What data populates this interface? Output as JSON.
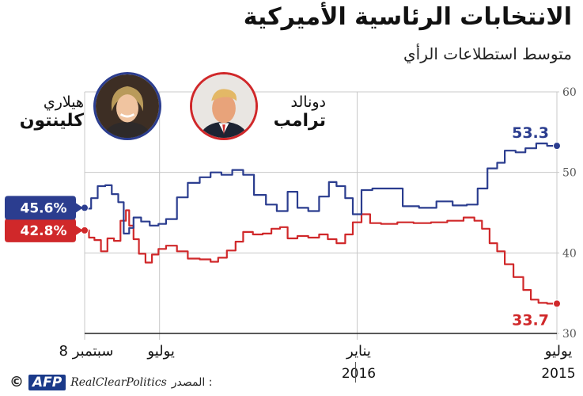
{
  "header": {
    "title": "الانتخابات الرئاسية الأميركية",
    "subtitle": "متوسط استطلاعات الرأي"
  },
  "candidates": {
    "trump": {
      "first": "دونالد",
      "last": "ترامب",
      "color": "#d0282a"
    },
    "clinton": {
      "first": "هيلاري",
      "last": "كلينتون",
      "color": "#2b3d8f"
    }
  },
  "footer": {
    "copyright": "©",
    "agency": "AFP",
    "source_name": "RealClearPolitics",
    "source_label": ": المصدر"
  },
  "chart_data": {
    "type": "line",
    "y_axis_side": "right",
    "ylim": [
      30,
      60
    ],
    "yticks": [
      30,
      40,
      50,
      60
    ],
    "x_direction": "right-to-left",
    "x_range": [
      "2015-07-01",
      "2016-09-08"
    ],
    "x_ticks": [
      {
        "date": "2015-07-01",
        "month": "يوليو",
        "year": "2015"
      },
      {
        "date": "2016-01-01",
        "month": "يناير",
        "year": "2016"
      },
      {
        "date": "2016-07-01",
        "month": "يوليو",
        "year": ""
      },
      {
        "date": "2016-09-08",
        "month": "8 سبتمبر",
        "year": ""
      }
    ],
    "grid": true,
    "series": [
      {
        "name": "ترامب",
        "color": "#d0282a",
        "start_label": "33.7",
        "end_label": "42.8%",
        "points": [
          [
            "2015-07-01",
            33.7
          ],
          [
            "2015-07-10",
            33.8
          ],
          [
            "2015-07-18",
            34.2
          ],
          [
            "2015-07-25",
            35.4
          ],
          [
            "2015-08-01",
            37.0
          ],
          [
            "2015-08-10",
            38.6
          ],
          [
            "2015-08-18",
            40.2
          ],
          [
            "2015-08-25",
            41.2
          ],
          [
            "2015-09-01",
            43.0
          ],
          [
            "2015-09-08",
            44.0
          ],
          [
            "2015-09-15",
            44.4
          ],
          [
            "2015-09-25",
            44.0
          ],
          [
            "2015-10-10",
            43.8
          ],
          [
            "2015-10-25",
            43.7
          ],
          [
            "2015-11-10",
            43.8
          ],
          [
            "2015-11-25",
            43.6
          ],
          [
            "2015-12-10",
            43.7
          ],
          [
            "2015-12-20",
            44.8
          ],
          [
            "2015-12-28",
            43.8
          ],
          [
            "2016-01-05",
            42.3
          ],
          [
            "2016-01-12",
            41.2
          ],
          [
            "2016-01-20",
            41.7
          ],
          [
            "2016-01-28",
            42.3
          ],
          [
            "2016-02-05",
            41.9
          ],
          [
            "2016-02-15",
            42.1
          ],
          [
            "2016-02-25",
            41.8
          ],
          [
            "2016-03-05",
            43.2
          ],
          [
            "2016-03-12",
            43.0
          ],
          [
            "2016-03-20",
            42.4
          ],
          [
            "2016-03-28",
            42.3
          ],
          [
            "2016-04-06",
            42.6
          ],
          [
            "2016-04-15",
            41.4
          ],
          [
            "2016-04-22",
            40.3
          ],
          [
            "2016-04-30",
            39.4
          ],
          [
            "2016-05-08",
            38.9
          ],
          [
            "2016-05-15",
            39.2
          ],
          [
            "2016-05-25",
            39.3
          ],
          [
            "2016-06-05",
            40.2
          ],
          [
            "2016-06-15",
            40.9
          ],
          [
            "2016-06-25",
            40.5
          ],
          [
            "2016-07-02",
            39.8
          ],
          [
            "2016-07-08",
            38.8
          ],
          [
            "2016-07-14",
            39.9
          ],
          [
            "2016-07-20",
            41.7
          ],
          [
            "2016-07-25",
            43.4
          ],
          [
            "2016-07-29",
            45.3
          ],
          [
            "2016-08-01",
            44.0
          ],
          [
            "2016-08-06",
            41.5
          ],
          [
            "2016-08-12",
            41.8
          ],
          [
            "2016-08-18",
            40.2
          ],
          [
            "2016-08-24",
            41.6
          ],
          [
            "2016-08-30",
            41.9
          ],
          [
            "2016-09-04",
            42.8
          ],
          [
            "2016-09-08",
            42.8
          ]
        ]
      },
      {
        "name": "كلينتون",
        "color": "#2b3d8f",
        "start_label": "53.3",
        "end_label": "45.6%",
        "points": [
          [
            "2015-07-01",
            53.3
          ],
          [
            "2015-07-10",
            53.6
          ],
          [
            "2015-07-20",
            53.0
          ],
          [
            "2015-07-30",
            52.5
          ],
          [
            "2015-08-08",
            52.7
          ],
          [
            "2015-08-18",
            51.2
          ],
          [
            "2015-08-25",
            50.5
          ],
          [
            "2015-09-03",
            48.0
          ],
          [
            "2015-09-12",
            46.0
          ],
          [
            "2015-09-22",
            45.9
          ],
          [
            "2015-10-05",
            46.4
          ],
          [
            "2015-10-20",
            45.6
          ],
          [
            "2015-11-05",
            45.8
          ],
          [
            "2015-11-20",
            48.0
          ],
          [
            "2015-12-05",
            48.0
          ],
          [
            "2015-12-18",
            47.8
          ],
          [
            "2015-12-28",
            44.8
          ],
          [
            "2016-01-05",
            46.8
          ],
          [
            "2016-01-12",
            48.3
          ],
          [
            "2016-01-20",
            48.8
          ],
          [
            "2016-01-27",
            47.0
          ],
          [
            "2016-02-05",
            45.2
          ],
          [
            "2016-02-15",
            45.6
          ],
          [
            "2016-02-25",
            47.6
          ],
          [
            "2016-03-05",
            45.2
          ],
          [
            "2016-03-15",
            46.0
          ],
          [
            "2016-03-25",
            47.2
          ],
          [
            "2016-04-05",
            49.7
          ],
          [
            "2016-04-15",
            50.3
          ],
          [
            "2016-04-25",
            49.7
          ],
          [
            "2016-05-05",
            50.0
          ],
          [
            "2016-05-15",
            49.4
          ],
          [
            "2016-05-25",
            48.7
          ],
          [
            "2016-06-05",
            46.9
          ],
          [
            "2016-06-15",
            44.2
          ],
          [
            "2016-06-25",
            43.6
          ],
          [
            "2016-07-02",
            43.4
          ],
          [
            "2016-07-10",
            43.9
          ],
          [
            "2016-07-18",
            44.4
          ],
          [
            "2016-07-25",
            43.1
          ],
          [
            "2016-07-29",
            42.4
          ],
          [
            "2016-08-03",
            46.3
          ],
          [
            "2016-08-08",
            47.3
          ],
          [
            "2016-08-14",
            48.4
          ],
          [
            "2016-08-20",
            48.3
          ],
          [
            "2016-08-27",
            46.8
          ],
          [
            "2016-09-02",
            45.5
          ],
          [
            "2016-09-08",
            45.6
          ]
        ]
      }
    ]
  }
}
